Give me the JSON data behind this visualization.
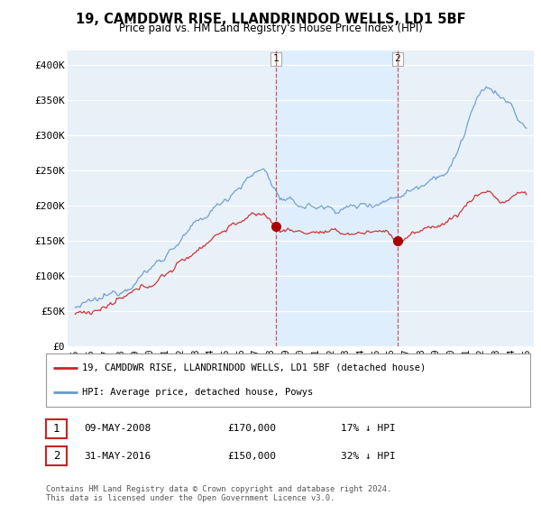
{
  "title": "19, CAMDDWR RISE, LLANDRINDOD WELLS, LD1 5BF",
  "subtitle": "Price paid vs. HM Land Registry's House Price Index (HPI)",
  "hpi_label": "HPI: Average price, detached house, Powys",
  "house_label": "19, CAMDDWR RISE, LLANDRINDOD WELLS, LD1 5BF (detached house)",
  "transaction1_date": "09-MAY-2008",
  "transaction1_price": 170000,
  "transaction1_pct": "17% ↓ HPI",
  "transaction1_x": 2008.36,
  "transaction2_date": "31-MAY-2016",
  "transaction2_price": 150000,
  "transaction2_pct": "32% ↓ HPI",
  "transaction2_x": 2016.42,
  "hpi_color": "#6699cc",
  "house_color": "#cc2222",
  "vline_color": "#cc3333",
  "span_color": "#ddeeff",
  "bg_color": "#e8f0f8",
  "plot_bg": "#ffffff",
  "ylim": [
    0,
    420000
  ],
  "xlim_start": 1994.5,
  "xlim_end": 2025.5,
  "footnote": "Contains HM Land Registry data © Crown copyright and database right 2024.\nThis data is licensed under the Open Government Licence v3.0.",
  "yticks": [
    0,
    50000,
    100000,
    150000,
    200000,
    250000,
    300000,
    350000,
    400000
  ],
  "ytick_labels": [
    "£0",
    "£50K",
    "£100K",
    "£150K",
    "£200K",
    "£250K",
    "£300K",
    "£350K",
    "£400K"
  ],
  "xticks": [
    1995,
    1996,
    1997,
    1998,
    1999,
    2000,
    2001,
    2002,
    2003,
    2004,
    2005,
    2006,
    2007,
    2008,
    2009,
    2010,
    2011,
    2012,
    2013,
    2014,
    2015,
    2016,
    2017,
    2018,
    2019,
    2020,
    2021,
    2022,
    2023,
    2024,
    2025
  ]
}
